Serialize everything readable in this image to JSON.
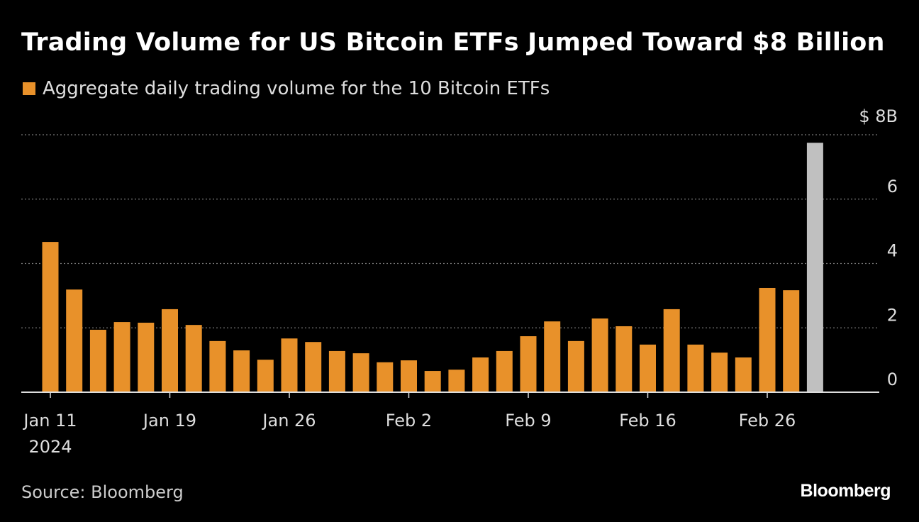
{
  "chart_data": {
    "type": "bar",
    "title": "Trading Volume for US Bitcoin ETFs Jumped Toward $8 Billion",
    "legend": [
      {
        "name": "Aggregate daily trading volume for the 10 Bitcoin ETFs",
        "color": "#e8912a"
      }
    ],
    "legend_placement": "top-left",
    "categories": [
      "2024-01-11",
      "2024-01-12",
      "2024-01-16",
      "2024-01-17",
      "2024-01-18",
      "2024-01-19",
      "2024-01-22",
      "2024-01-23",
      "2024-01-24",
      "2024-01-25",
      "2024-01-26",
      "2024-01-29",
      "2024-01-30",
      "2024-01-31",
      "2024-02-01",
      "2024-02-02",
      "2024-02-05",
      "2024-02-06",
      "2024-02-07",
      "2024-02-08",
      "2024-02-09",
      "2024-02-12",
      "2024-02-13",
      "2024-02-14",
      "2024-02-15",
      "2024-02-16",
      "2024-02-20",
      "2024-02-21",
      "2024-02-22",
      "2024-02-23",
      "2024-02-26",
      "2024-02-27",
      "2024-02-28"
    ],
    "values": [
      4.67,
      3.19,
      1.94,
      2.18,
      2.16,
      2.58,
      2.09,
      1.59,
      1.3,
      1.01,
      1.67,
      1.56,
      1.28,
      1.21,
      0.93,
      0.99,
      0.66,
      0.7,
      1.08,
      1.28,
      1.74,
      2.2,
      1.59,
      2.29,
      2.05,
      1.48,
      2.58,
      1.48,
      1.23,
      1.08,
      3.24,
      3.17,
      7.75
    ],
    "highlight_color": "#c0c0c0",
    "highlight_index_label": "2024-02-28",
    "bar_color": "#e8912a",
    "x_ticks": [
      {
        "category": "2024-01-11",
        "label": "Jan 11",
        "sublabel": "2024"
      },
      {
        "category": "2024-01-19",
        "label": "Jan 19"
      },
      {
        "category": "2024-01-26",
        "label": "Jan 26"
      },
      {
        "category": "2024-02-02",
        "label": "Feb 2"
      },
      {
        "category": "2024-02-09",
        "label": "Feb 9"
      },
      {
        "category": "2024-02-16",
        "label": "Feb 16"
      },
      {
        "category": "2024-02-26",
        "label": "Feb 26"
      }
    ],
    "y_ticks": [
      {
        "value": 0,
        "label": "0"
      },
      {
        "value": 2,
        "label": "2"
      },
      {
        "value": 4,
        "label": "4"
      },
      {
        "value": 6,
        "label": "6"
      },
      {
        "value": 8,
        "label": "$ 8B"
      }
    ],
    "ylim": [
      0,
      8
    ],
    "y_axis_side": "right",
    "grid": "horizontal dotted",
    "source": "Source: Bloomberg",
    "logo": "Bloomberg"
  }
}
